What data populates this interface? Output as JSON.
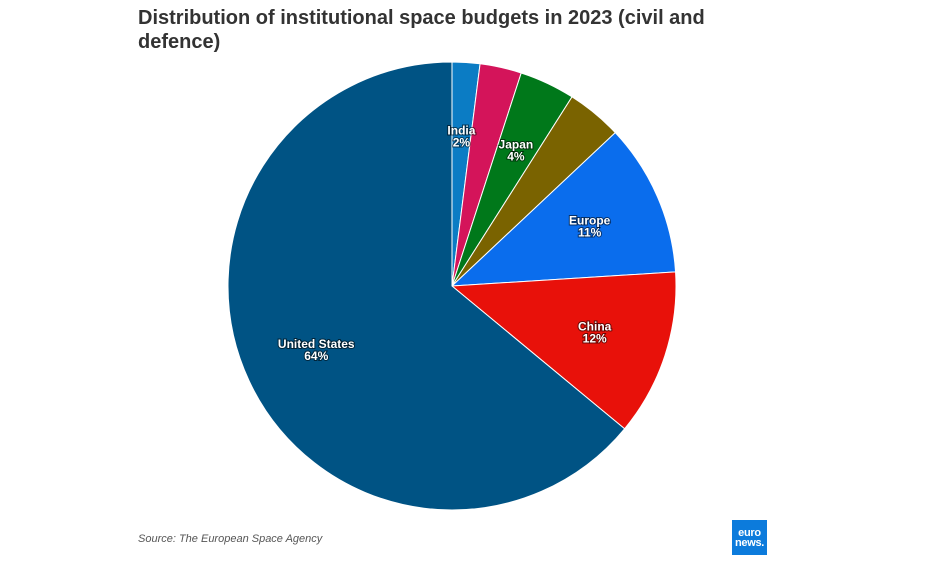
{
  "chart_data": {
    "type": "pie",
    "title": "Distribution of institutional space budgets in 2023 (civil and defence)",
    "slices": [
      {
        "name": "India",
        "value": 2,
        "label": "2%",
        "color": "#0b7cc4",
        "labeled": true
      },
      {
        "name": "",
        "value": 3,
        "label": "",
        "color": "#d4145a",
        "labeled": false
      },
      {
        "name": "Japan",
        "value": 4,
        "label": "4%",
        "color": "#00781a",
        "labeled": true
      },
      {
        "name": "",
        "value": 4,
        "label": "",
        "color": "#7a6300",
        "labeled": false
      },
      {
        "name": "Europe",
        "value": 11,
        "label": "11%",
        "color": "#0a6ded",
        "labeled": true
      },
      {
        "name": "China",
        "value": 12,
        "label": "12%",
        "color": "#e8110a",
        "labeled": true
      },
      {
        "name": "United States",
        "value": 64,
        "label": "64%",
        "color": "#005384",
        "labeled": true
      }
    ]
  },
  "source": "Source: The European Space Agency",
  "logo": {
    "line1": "euro",
    "line2": "news."
  }
}
